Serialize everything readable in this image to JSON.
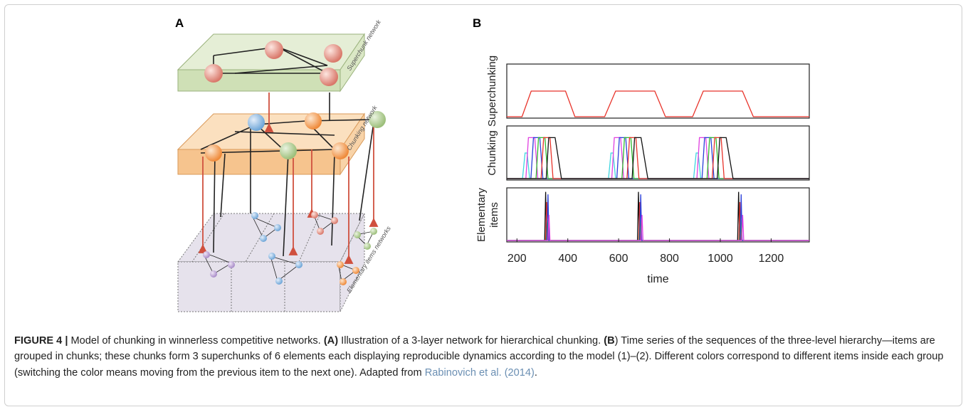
{
  "panel_a": {
    "label": "A",
    "layers": [
      "Superchunk network",
      "Chunking network",
      "Elementary items networks"
    ]
  },
  "panel_b": {
    "label": "B"
  },
  "chart_data": [
    {
      "type": "line",
      "ylabel": "Superchunking",
      "xlim": [
        160,
        1350
      ],
      "ylim": [
        0,
        1
      ],
      "series": [
        {
          "color": "#e8332a",
          "x": [
            160,
            220,
            256,
            391,
            428,
            545,
            588,
            742,
            784,
            891,
            933,
            1087,
            1130,
            1350
          ],
          "values": [
            0,
            0,
            0.5,
            0.5,
            0,
            0,
            0.5,
            0.5,
            0,
            0,
            0.5,
            0.5,
            0,
            0
          ]
        }
      ]
    },
    {
      "type": "line",
      "ylabel": "Chunking",
      "xlim": [
        160,
        1350
      ],
      "ylim": [
        0,
        1
      ],
      "series": [
        {
          "color": "#3fd6e0",
          "x": [
            160,
            222,
            232,
            240,
            250,
            560,
            570,
            578,
            588,
            895,
            905,
            913,
            923,
            1350
          ],
          "values": [
            0,
            0,
            0.5,
            0.5,
            0,
            0,
            0.5,
            0.5,
            0,
            0,
            0.5,
            0.5,
            0,
            0
          ]
        },
        {
          "color": "#e040e0",
          "x": [
            160,
            235,
            245,
            270,
            282,
            573,
            583,
            608,
            620,
            908,
            918,
            943,
            955,
            1350
          ],
          "values": [
            0,
            0,
            0.8,
            0.8,
            0,
            0,
            0.8,
            0.8,
            0,
            0,
            0.8,
            0.8,
            0,
            0
          ]
        },
        {
          "color": "#2a3fd8",
          "x": [
            160,
            255,
            265,
            290,
            302,
            593,
            603,
            628,
            640,
            928,
            938,
            963,
            975,
            1350
          ],
          "values": [
            0,
            0,
            0.8,
            0.8,
            0,
            0,
            0.8,
            0.8,
            0,
            0,
            0.8,
            0.8,
            0,
            0
          ]
        },
        {
          "color": "#2fb82f",
          "x": [
            160,
            275,
            285,
            310,
            322,
            613,
            623,
            648,
            660,
            948,
            958,
            983,
            995,
            1350
          ],
          "values": [
            0,
            0,
            0.8,
            0.8,
            0,
            0,
            0.8,
            0.8,
            0,
            0,
            0.8,
            0.8,
            0,
            0
          ]
        },
        {
          "color": "#e8332a",
          "x": [
            160,
            295,
            305,
            330,
            342,
            633,
            643,
            668,
            680,
            968,
            978,
            1003,
            1015,
            1350
          ],
          "values": [
            0,
            0,
            0.8,
            0.8,
            0,
            0,
            0.8,
            0.8,
            0,
            0,
            0.8,
            0.8,
            0,
            0
          ]
        },
        {
          "color": "#111111",
          "x": [
            160,
            315,
            325,
            350,
            375,
            653,
            663,
            688,
            715,
            988,
            998,
            1023,
            1050,
            1350
          ],
          "values": [
            0,
            0,
            0.8,
            0.8,
            0,
            0,
            0.8,
            0.8,
            0,
            0,
            0.8,
            0.8,
            0,
            0
          ]
        }
      ]
    },
    {
      "type": "line",
      "ylabel": [
        "Elementary",
        "items"
      ],
      "xlim": [
        160,
        1350
      ],
      "ylim": [
        0,
        1
      ],
      "xticks": [
        200,
        400,
        600,
        800,
        1000,
        1200
      ],
      "xlabel": "time",
      "series": [
        {
          "color": "#111111",
          "x": [
            160,
            309,
            313,
            317,
            674,
            678,
            682,
            1068,
            1072,
            1076,
            1350
          ],
          "values": [
            0,
            0,
            0.95,
            0,
            0,
            0.95,
            0,
            0,
            0.95,
            0,
            0
          ]
        },
        {
          "color": "#e8332a",
          "x": [
            160,
            313,
            317,
            321,
            679,
            683,
            687,
            1073,
            1077,
            1081,
            1350
          ],
          "values": [
            0,
            0,
            0.75,
            0,
            0,
            0.75,
            0,
            0,
            0.75,
            0,
            0
          ]
        },
        {
          "color": "#2fb82f",
          "x": [
            160,
            316,
            320,
            324,
            681,
            685,
            689,
            1076,
            1080,
            1084,
            1350
          ],
          "values": [
            0,
            0,
            0.4,
            0,
            0,
            0.4,
            0,
            0,
            0.4,
            0,
            0
          ]
        },
        {
          "color": "#2a3fd8",
          "x": [
            160,
            318,
            322,
            326,
            683,
            687,
            691,
            1078,
            1082,
            1086,
            1350
          ],
          "values": [
            0,
            0,
            0.9,
            0,
            0,
            0.9,
            0,
            0,
            0.9,
            0,
            0
          ]
        },
        {
          "color": "#e040e0",
          "x": [
            160,
            322,
            326,
            330,
            688,
            692,
            696,
            1084,
            1088,
            1092,
            1350
          ],
          "values": [
            0,
            0,
            0.5,
            0,
            0,
            0.5,
            0,
            0,
            0.5,
            0,
            0
          ]
        }
      ]
    }
  ],
  "caption": {
    "figure_label": "FIGURE 4 |",
    "title": "Model of chunking in winnerless competitive networks.",
    "a_label": "(A)",
    "a_text": "Illustration of a 3-layer network for hierarchical chunking.",
    "b_label": "(B",
    "b_text": ") Time series of the sequences of the three-level hierarchy—items are grouped in chunks; these chunks form 3 superchunks of 6 elements each displaying reproducible dynamics according to the model (1)–(2). Different colors correspond to different items inside each group (switching the color means moving from the previous item to the next one). Adapted from",
    "citation": "Rabinovich et al. (2014)",
    "end": "."
  }
}
